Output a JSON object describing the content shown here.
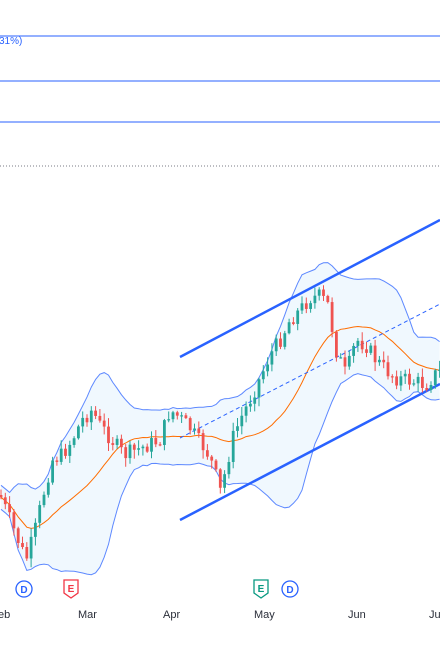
{
  "colors": {
    "up": "#26a69a",
    "down": "#ef5350",
    "bollinger": "#2962ff",
    "bollinger_fill": "#e3f2fd",
    "basis": "#ff6d00",
    "channel": "#2962ff",
    "fib": "#2962ff",
    "dotted": "#787b86",
    "earnings": "#f23645",
    "dividend": "#2962ff",
    "earnings_green": "#089981"
  },
  "fib_levels": [
    {
      "label": "31%)"
    },
    {
      "label": ""
    },
    {
      "label": ""
    }
  ],
  "months": [
    {
      "label": "eb"
    },
    {
      "label": "Mar"
    },
    {
      "label": "Apr"
    },
    {
      "label": "May"
    },
    {
      "label": "Jun"
    },
    {
      "label": "Ju"
    }
  ],
  "event_markers": [
    {
      "letter": "D",
      "type": "dividend",
      "icon": "circle"
    },
    {
      "letter": "E",
      "type": "earnings",
      "icon": "pentagon-down"
    },
    {
      "letter": "E",
      "type": "earnings_green",
      "icon": "pentagon-down"
    },
    {
      "letter": "D",
      "type": "dividend",
      "icon": "circle"
    }
  ],
  "chart_data": {
    "type": "candlestick",
    "indicators": [
      "Bollinger Bands",
      "Parallel channel",
      "Fibonacci levels"
    ],
    "grid": false
  }
}
